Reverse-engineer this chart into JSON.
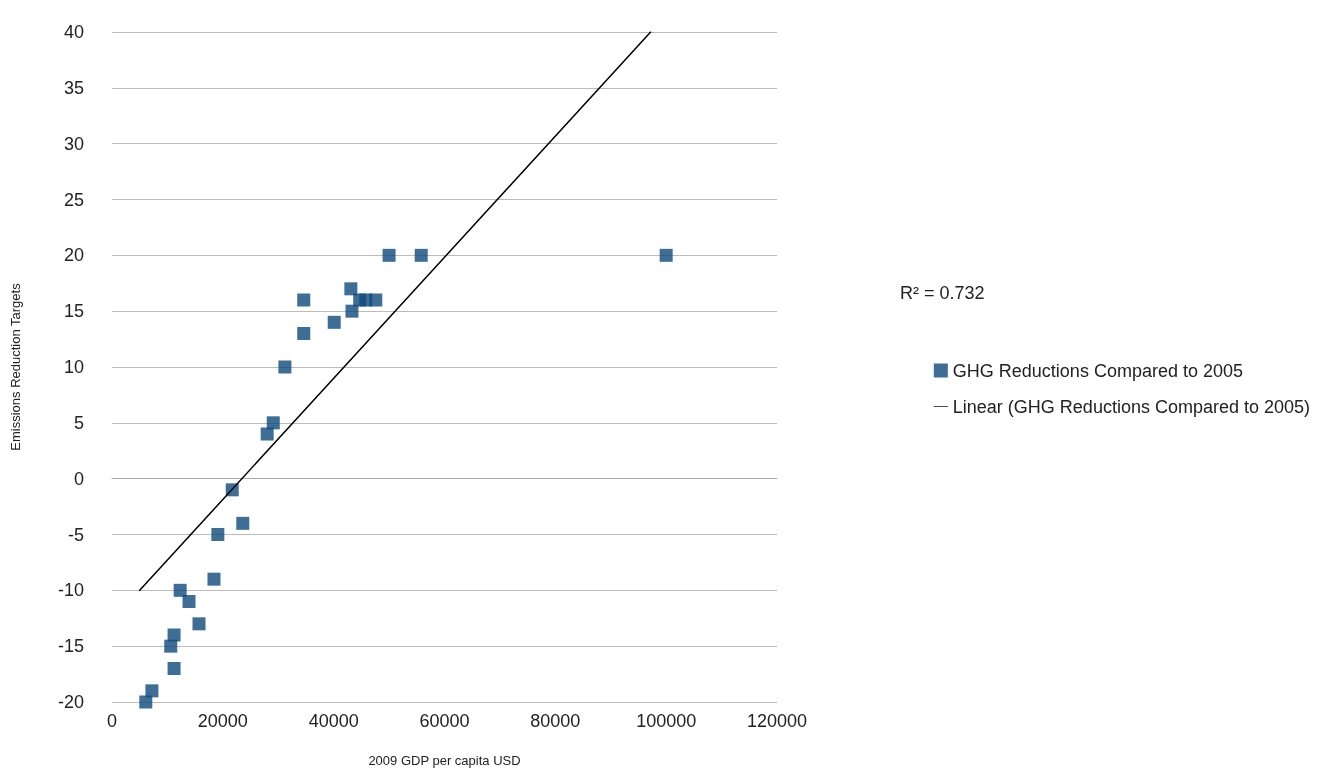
{
  "chart_data": {
    "type": "scatter",
    "xlabel": "2009 GDP per capita USD",
    "ylabel": "Emissions Reduction Targets",
    "xlim": [
      0,
      120000
    ],
    "xticks": [
      0,
      20000,
      40000,
      60000,
      80000,
      100000,
      120000
    ],
    "ylim": [
      -20,
      40
    ],
    "yticks": [
      -20,
      -15,
      -10,
      -5,
      0,
      5,
      10,
      15,
      20,
      25,
      30,
      35,
      40
    ],
    "grid": "y",
    "legend": "right",
    "marker": "square",
    "annotations": [
      "R² = 0.732"
    ],
    "series": [
      {
        "name": "GHG Reductions Compared to 2005",
        "color": "#0e4a7b",
        "x": [
          6100,
          7200,
          10600,
          11200,
          11200,
          12300,
          13900,
          15700,
          18400,
          19100,
          21700,
          23600,
          28000,
          29100,
          31200,
          34600,
          34600,
          40100,
          43100,
          43300,
          44700,
          45800,
          47600,
          50000,
          55800,
          100000
        ],
        "values": [
          -20,
          -19,
          -15,
          -14,
          -17,
          -10,
          -11,
          -13,
          -9,
          -5,
          -1,
          -4,
          4,
          5,
          10,
          16,
          13,
          14,
          17,
          15,
          16,
          16,
          16,
          20,
          20,
          20
        ]
      },
      {
        "name": "Linear (GHG Reductions Compared to 2005)",
        "type": "line",
        "color": "#000000",
        "marker": "none",
        "line_style": "solid",
        "x": [
          5000,
          97200
        ],
        "values": [
          -10,
          40
        ]
      }
    ]
  }
}
